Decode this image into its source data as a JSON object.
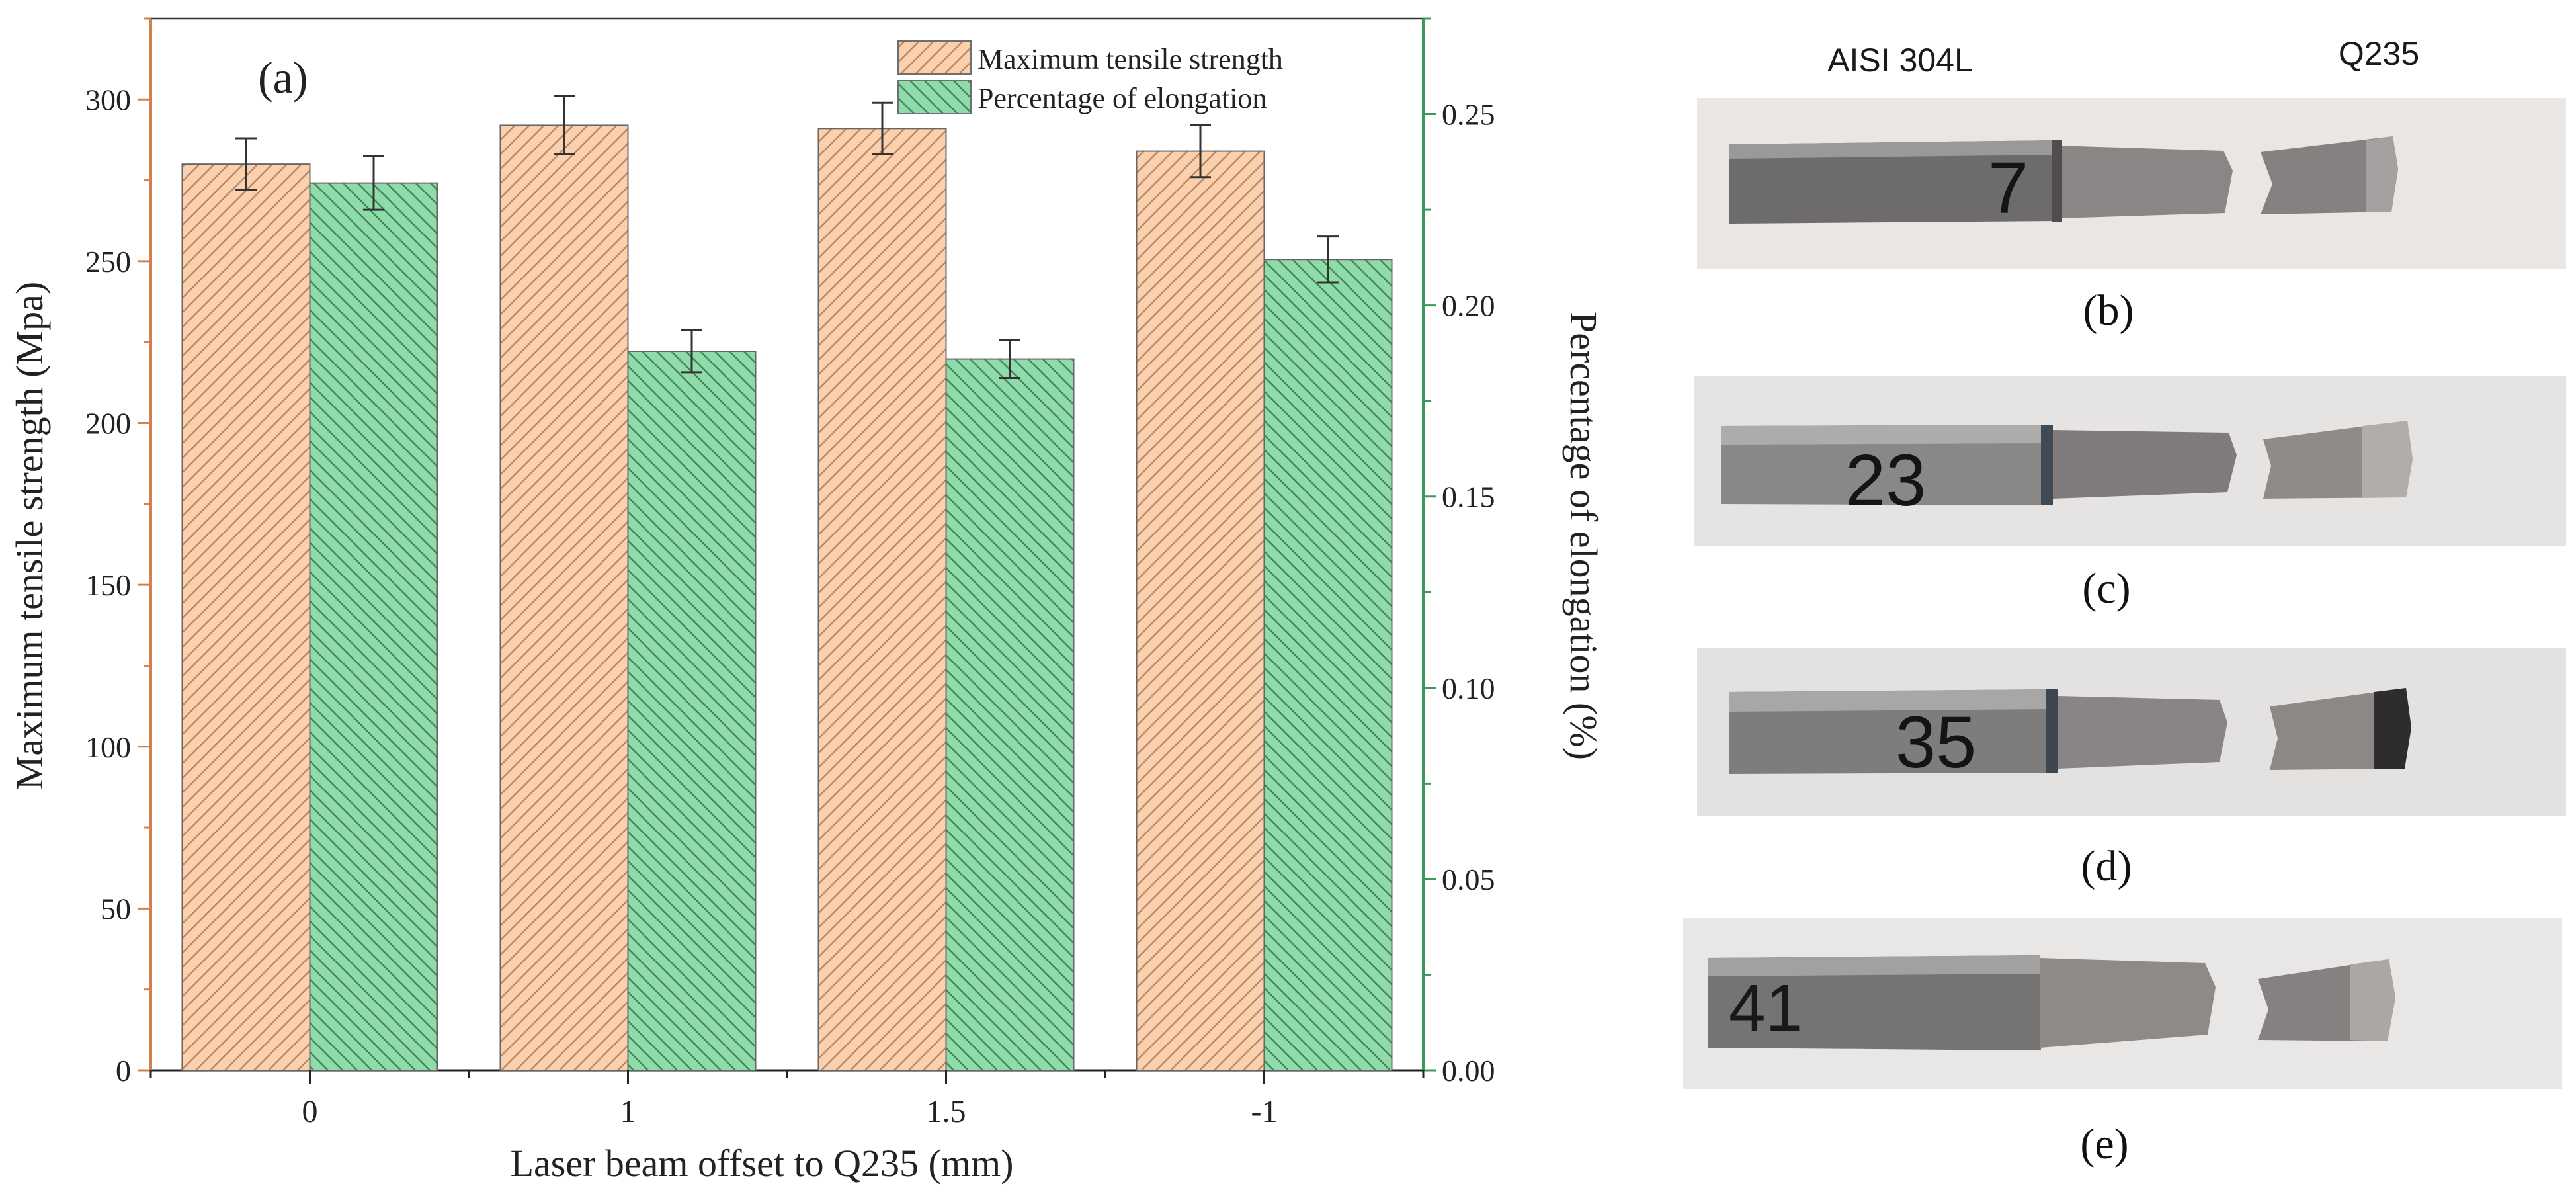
{
  "chart_data": {
    "type": "bar",
    "panel_label": "(a)",
    "categories": [
      "0",
      "1",
      "1.5",
      "-1"
    ],
    "xlabel": "Laser beam offset to Q235 (mm)",
    "ylabel_left": "Maximum tensile strength (Mpa)",
    "ylabel_right": "Percentage of elongation (%)",
    "ylim_left": [
      0,
      325
    ],
    "ylim_right": [
      0,
      0.275
    ],
    "yticks_left": [
      "0",
      "50",
      "100",
      "150",
      "200",
      "250",
      "300"
    ],
    "yticks_right": [
      "0.00",
      "0.05",
      "0.10",
      "0.15",
      "0.20",
      "0.25"
    ],
    "legend_position": "top-right",
    "grid": false,
    "series": [
      {
        "name": "Maximum tensile strength",
        "axis": "left",
        "color": "#fbd0ad",
        "edge_color": "#e5793a",
        "values": [
          280,
          292,
          291,
          284
        ],
        "errors": [
          8,
          9,
          8,
          8
        ]
      },
      {
        "name": "Percentage of elongation",
        "axis": "right",
        "color": "#8edcaa",
        "edge_color": "#2f8a4e",
        "values": [
          0.232,
          0.188,
          0.186,
          0.212
        ],
        "errors": [
          0.007,
          0.0055,
          0.005,
          0.006
        ]
      }
    ],
    "left_axis_color": "#d4804a",
    "right_axis_color": "#3a9a5c"
  },
  "photos": {
    "header_left": "AISI 304L",
    "header_right": "Q235",
    "labels": [
      "(b)",
      "(c)",
      "(d)",
      "(e)"
    ],
    "specimen_marks": [
      "7",
      "23",
      "35",
      "41"
    ]
  }
}
